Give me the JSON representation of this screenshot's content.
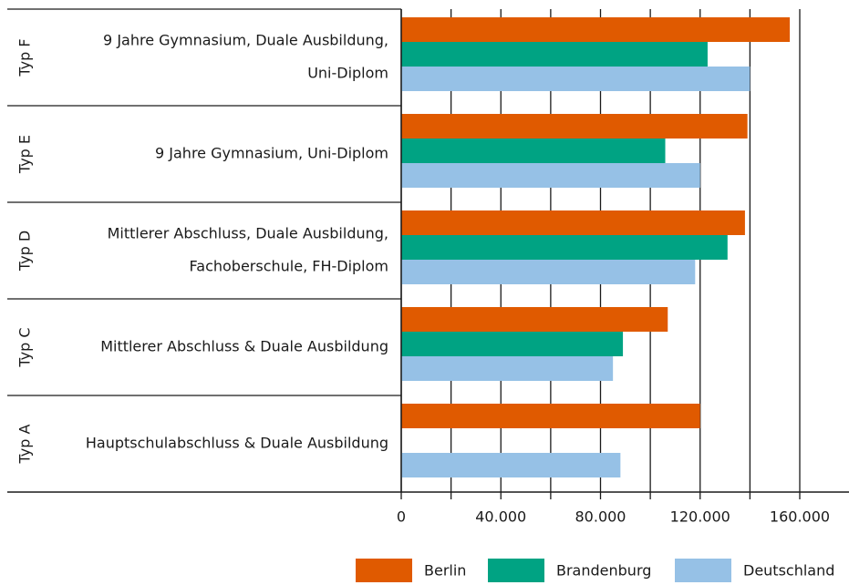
{
  "chart_data": {
    "type": "bar",
    "orientation": "horizontal",
    "categories": [
      "Typ F",
      "Typ E",
      "Typ D",
      "Typ C",
      "Typ A"
    ],
    "category_descriptions": [
      [
        "9 Jahre Gymnasium, Duale Ausbildung,",
        "Uni-Diplom"
      ],
      [
        "9 Jahre Gymnasium, Uni-Diplom"
      ],
      [
        "Mittlerer Abschluss, Duale Ausbildung,",
        "Fachoberschule, FH-Diplom"
      ],
      [
        "Mittlerer Abschluss & Duale Ausbildung"
      ],
      [
        "Hauptschulabschluss & Duale Ausbildung"
      ]
    ],
    "series": [
      {
        "name": "Berlin",
        "color": "#e05a00",
        "values": [
          156000,
          139000,
          138000,
          107000,
          120000
        ]
      },
      {
        "name": "Brandenburg",
        "color": "#00a383",
        "values": [
          123000,
          106000,
          131000,
          89000,
          null
        ]
      },
      {
        "name": "Deutschland",
        "color": "#96c1e6",
        "values": [
          140000,
          120000,
          118000,
          85000,
          88000
        ]
      }
    ],
    "xlim": [
      0,
      160000
    ],
    "xticks": [
      0,
      {
        "value": 40000,
        "label": "40.000"
      },
      {
        "value": 80000,
        "label": "80.000"
      },
      {
        "value": 120000,
        "label": "120.000"
      },
      {
        "value": 160000,
        "label": "160.000"
      }
    ],
    "minor_xticks": [
      20000,
      60000,
      100000,
      140000
    ],
    "legend": "bottom-right"
  }
}
